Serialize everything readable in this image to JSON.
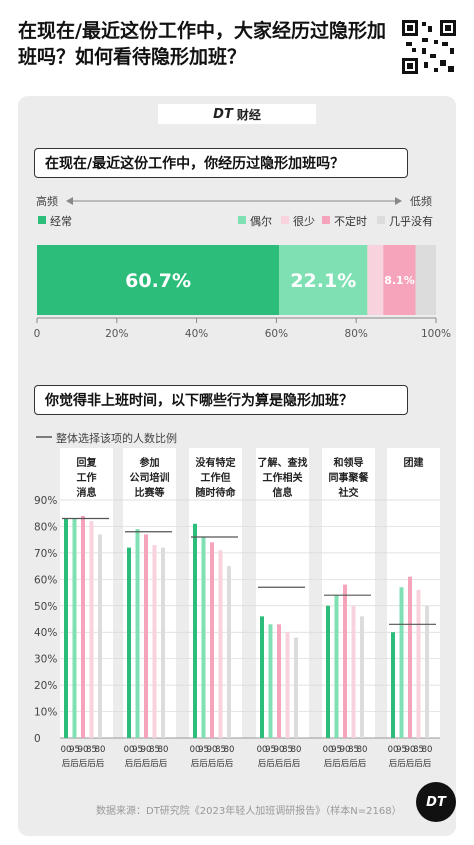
{
  "header": {
    "title": "在现在/最近这份工作中，大家经历过隐形加班吗？如何看待隐形加班？",
    "brand": "财经",
    "brand_logo": "DT"
  },
  "q1": {
    "question": "在现在/最近这份工作中，你经历过隐形加班吗？",
    "freq_high": "高频",
    "freq_low": "低频"
  },
  "q2": {
    "question": "你觉得非上班时间，以下哪些行为算是隐形加班？",
    "legend_line": "整体选择该项的人数比例"
  },
  "footer": {
    "source": "数据来源：DT研究院《2023年轻人加班调研报告》（样本N=2168）",
    "logo": "DT"
  },
  "colors": {
    "经常": "#2dbd7a",
    "偶尔": "#7fe0b3",
    "很少": "#f8d3dd",
    "不定时": "#f5a4bb",
    "几乎没有": "#dcdcdc"
  },
  "chart_data": [
    {
      "type": "bar",
      "orientation": "horizontal-stacked",
      "categories": [
        "经常",
        "偶尔",
        "很少",
        "不定时",
        "几乎没有"
      ],
      "values": [
        60.7,
        22.1,
        4.0,
        8.1,
        5.1
      ],
      "data_labels": [
        "60.7%",
        "22.1%",
        "",
        "8.1%",
        ""
      ],
      "xlim": [
        0,
        100
      ],
      "x_ticks": [
        "0",
        "20%",
        "40%",
        "60%",
        "80%",
        "100%"
      ],
      "legend_placement": "top"
    },
    {
      "type": "bar",
      "categories": [
        "回复工作消息",
        "参加公司培训比赛等",
        "没有特定工作但随时待命",
        "了解、查找工作相关信息",
        "和领导同事聚餐社交",
        "团建"
      ],
      "category_labels": [
        [
          "回复",
          "工作",
          "消息"
        ],
        [
          "参加",
          "公司培训",
          "比赛等"
        ],
        [
          "没有特定",
          "工作但",
          "随时待命"
        ],
        [
          "了解、查找",
          "工作相关",
          "信息"
        ],
        [
          "和领导",
          "同事聚餐",
          "社交"
        ],
        [
          "团建"
        ]
      ],
      "series": [
        {
          "name": "00后",
          "values": [
            83,
            72,
            81,
            46,
            50,
            40
          ]
        },
        {
          "name": "95后",
          "values": [
            83,
            79,
            76,
            43,
            54,
            57
          ]
        },
        {
          "name": "90后",
          "values": [
            84,
            77,
            74,
            43,
            58,
            61
          ]
        },
        {
          "name": "85后",
          "values": [
            82,
            73,
            71,
            40,
            50,
            56
          ]
        },
        {
          "name": "80后",
          "values": [
            77,
            72,
            65,
            38,
            46,
            50
          ]
        }
      ],
      "overall": [
        83,
        78,
        76,
        57,
        54,
        43
      ],
      "series_tick_labels": [
        "00",
        "95",
        "90",
        "85",
        "80"
      ],
      "series_tick_suffix": "后",
      "ylim": [
        0,
        90
      ],
      "y_ticks": [
        "0",
        "10%",
        "20%",
        "30%",
        "40%",
        "50%",
        "60%",
        "70%",
        "80%",
        "90%"
      ],
      "grid": true
    }
  ]
}
